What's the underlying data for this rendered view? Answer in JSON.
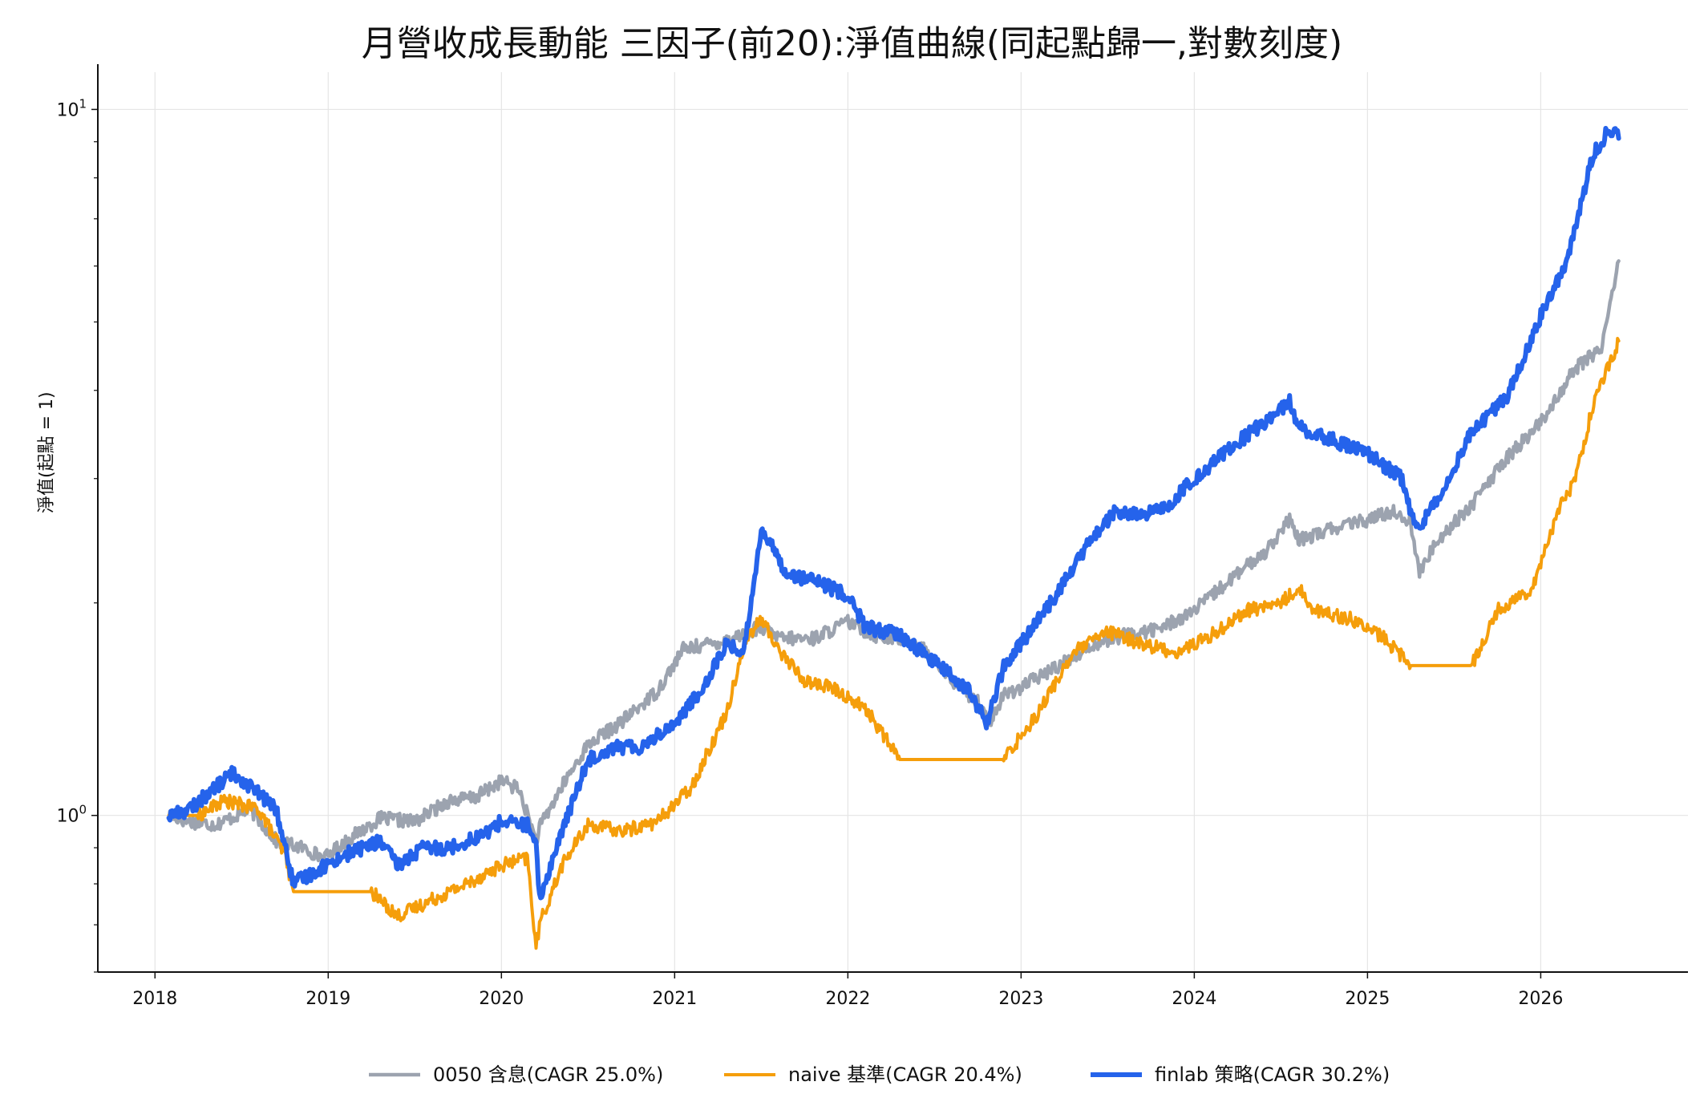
{
  "chart_data": {
    "type": "line",
    "title": "月營收成長動能 三因子(前20):淨值曲線(同起點歸一,對數刻度)",
    "xlabel": "",
    "ylabel": "淨值(起點 = 1)",
    "yscale": "log",
    "ylim": [
      0.6,
      11.0
    ],
    "xlim": [
      2017.67,
      2026.85
    ],
    "x_ticks": [
      2018,
      2019,
      2020,
      2021,
      2022,
      2023,
      2024,
      2025,
      2026
    ],
    "x_tick_labels": [
      "2018",
      "2019",
      "2020",
      "2021",
      "2022",
      "2023",
      "2024",
      "2025",
      "2026"
    ],
    "y_ticks": [
      1,
      10
    ],
    "y_tick_labels": [
      {
        "base": "10",
        "exp": "0"
      },
      {
        "base": "10",
        "exp": "1"
      }
    ],
    "grid": true,
    "legend_position": "bottom-center",
    "series": [
      {
        "name": "0050 含息(CAGR 25.0%)",
        "color": "#9ca3af",
        "x": [
          2018.08,
          2018.2,
          2018.35,
          2018.55,
          2018.7,
          2018.85,
          2018.98,
          2019.1,
          2019.3,
          2019.5,
          2019.7,
          2019.85,
          2020.0,
          2020.1,
          2020.2,
          2020.22,
          2020.35,
          2020.5,
          2020.7,
          2020.9,
          2021.05,
          2021.3,
          2021.5,
          2021.6,
          2021.8,
          2022.0,
          2022.15,
          2022.4,
          2022.6,
          2022.75,
          2022.82,
          2022.9,
          2023.0,
          2023.2,
          2023.4,
          2023.6,
          2023.8,
          2024.0,
          2024.2,
          2024.4,
          2024.55,
          2024.6,
          2024.8,
          2025.0,
          2025.15,
          2025.25,
          2025.3,
          2025.4,
          2025.6,
          2025.8,
          2026.0,
          2026.2,
          2026.35,
          2026.45
        ],
        "values": [
          1.0,
          0.98,
          0.97,
          1.02,
          0.92,
          0.9,
          0.87,
          0.92,
          0.99,
          0.98,
          1.05,
          1.06,
          1.12,
          1.09,
          0.92,
          0.96,
          1.1,
          1.26,
          1.36,
          1.5,
          1.72,
          1.77,
          1.85,
          1.78,
          1.78,
          1.88,
          1.8,
          1.76,
          1.55,
          1.45,
          1.35,
          1.48,
          1.52,
          1.62,
          1.74,
          1.8,
          1.84,
          1.95,
          2.15,
          2.35,
          2.62,
          2.45,
          2.55,
          2.62,
          2.7,
          2.6,
          2.2,
          2.45,
          2.75,
          3.2,
          3.6,
          4.3,
          4.6,
          6.1
        ]
      },
      {
        "name": "naive 基準(CAGR 20.4%)",
        "color": "#f59e0b",
        "x": [
          2018.08,
          2018.25,
          2018.4,
          2018.6,
          2018.75,
          2018.8,
          2019.0,
          2019.25,
          2019.4,
          2019.6,
          2019.8,
          2020.0,
          2020.15,
          2020.2,
          2020.22,
          2020.35,
          2020.5,
          2020.7,
          2020.9,
          2021.1,
          2021.3,
          2021.4,
          2021.5,
          2021.6,
          2021.75,
          2021.9,
          2022.1,
          2022.3,
          2022.6,
          2022.9,
          2023.1,
          2023.3,
          2023.5,
          2023.7,
          2023.9,
          2024.1,
          2024.3,
          2024.5,
          2024.6,
          2024.7,
          2024.9,
          2025.1,
          2025.25,
          2025.5,
          2025.6,
          2025.75,
          2025.95,
          2026.1,
          2026.2,
          2026.3,
          2026.45
        ],
        "values": [
          1.0,
          1.0,
          1.05,
          1.02,
          0.88,
          0.78,
          0.78,
          0.78,
          0.72,
          0.76,
          0.8,
          0.85,
          0.87,
          0.65,
          0.7,
          0.85,
          0.97,
          0.95,
          0.98,
          1.1,
          1.4,
          1.75,
          1.9,
          1.72,
          1.55,
          1.52,
          1.42,
          1.2,
          1.2,
          1.2,
          1.4,
          1.7,
          1.82,
          1.75,
          1.7,
          1.8,
          1.95,
          2.0,
          2.1,
          1.95,
          1.9,
          1.78,
          1.63,
          1.63,
          1.63,
          1.95,
          2.1,
          2.7,
          3.0,
          3.8,
          4.7
        ]
      },
      {
        "name": "finlab 策略(CAGR 30.2%)",
        "color": "#2563eb",
        "x": [
          2018.08,
          2018.2,
          2018.45,
          2018.55,
          2018.7,
          2018.8,
          2018.95,
          2019.1,
          2019.3,
          2019.4,
          2019.55,
          2019.7,
          2019.9,
          2020.0,
          2020.15,
          2020.2,
          2020.22,
          2020.35,
          2020.5,
          2020.65,
          2020.8,
          2021.0,
          2021.15,
          2021.3,
          2021.4,
          2021.5,
          2021.65,
          2021.8,
          2022.0,
          2022.1,
          2022.3,
          2022.5,
          2022.7,
          2022.8,
          2022.9,
          2023.0,
          2023.2,
          2023.4,
          2023.55,
          2023.7,
          2023.85,
          2024.0,
          2024.2,
          2024.4,
          2024.55,
          2024.6,
          2024.8,
          2025.0,
          2025.2,
          2025.25,
          2025.3,
          2025.45,
          2025.6,
          2025.8,
          2026.0,
          2026.15,
          2026.3,
          2026.4,
          2026.45
        ],
        "values": [
          1.0,
          1.02,
          1.15,
          1.1,
          1.02,
          0.8,
          0.84,
          0.88,
          0.92,
          0.85,
          0.9,
          0.9,
          0.94,
          0.98,
          0.97,
          0.9,
          0.76,
          0.95,
          1.2,
          1.25,
          1.25,
          1.35,
          1.5,
          1.75,
          1.7,
          2.55,
          2.2,
          2.15,
          2.05,
          1.85,
          1.8,
          1.65,
          1.5,
          1.35,
          1.62,
          1.75,
          2.05,
          2.45,
          2.7,
          2.65,
          2.75,
          3.0,
          3.3,
          3.6,
          3.85,
          3.55,
          3.4,
          3.25,
          3.0,
          2.7,
          2.55,
          2.95,
          3.5,
          3.9,
          5.1,
          6.1,
          8.6,
          9.4,
          9.1
        ]
      }
    ]
  }
}
